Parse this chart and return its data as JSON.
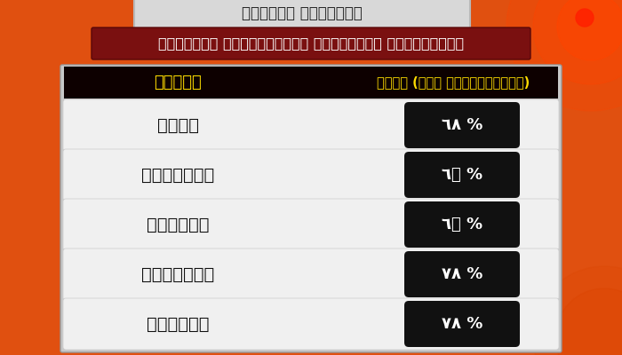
{
  "title_top": "लोकसभा निवडणूक",
  "subtitle": "पहिल्या टप्प्यातील मतदानाची टक्केवारी",
  "col1_header": "राज्य",
  "col2_header": "२०९९ (पाच वाजेपर्यंत)",
  "states": [
    "आसाम",
    "सिक्कीम",
    "मिझोरम",
    "नागालंड",
    "मणिपूर"
  ],
  "values": [
    "٦٨ %",
    "٦९ %",
    "٦० %",
    "٧٨ %",
    "٧٨ %"
  ],
  "bg_orange_dark": "#cc3300",
  "bg_orange": "#e05010",
  "header_bg": "#0d0000",
  "subtitle_bg": "#7a1010",
  "value_pill_bg": "#111111",
  "header_text_yellow": "#ffdd00",
  "subtitle_text": "#ffffff",
  "state_text": "#111111",
  "value_text": "#ffffff",
  "row_bg": "#f0f0f0",
  "table_bg": "#c8c8c8",
  "title_bg": "#d8d8d8",
  "circle_color": "#ff4400"
}
